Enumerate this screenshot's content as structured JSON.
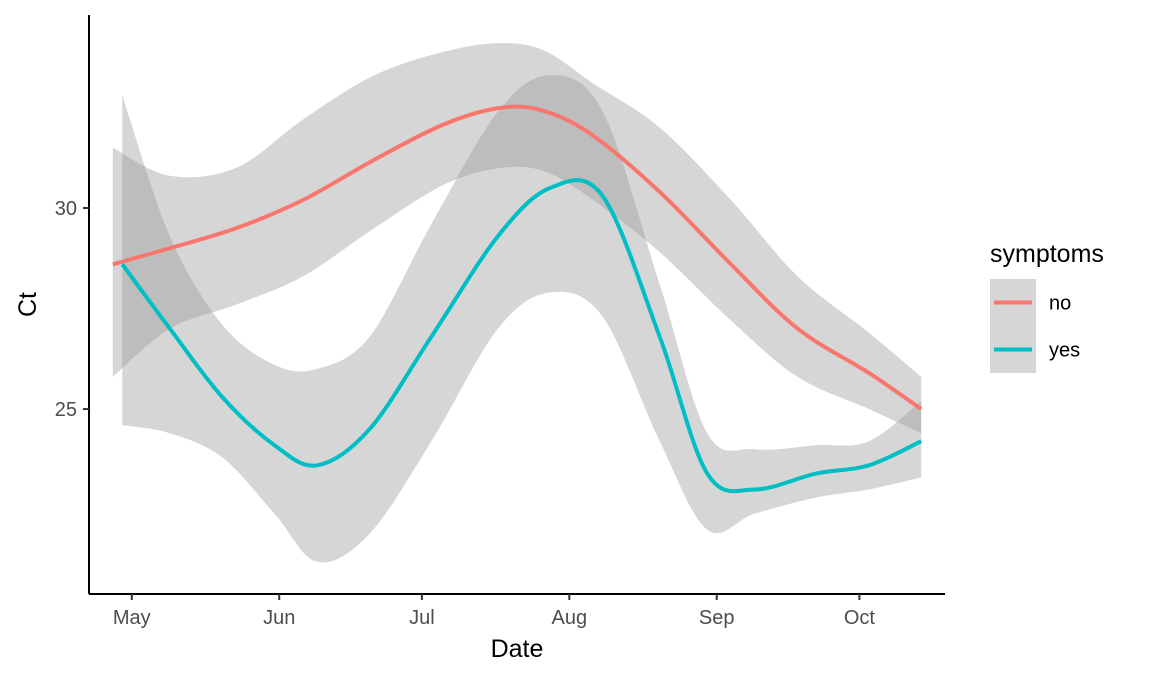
{
  "chart_data": {
    "type": "line",
    "xlabel": "Date",
    "ylabel": "Ct",
    "x_tick_labels": [
      "May",
      "Jun",
      "Jul",
      "Aug",
      "Sep",
      "Oct"
    ],
    "x_tick_dates": [
      "2021-05-01",
      "2021-06-01",
      "2021-07-01",
      "2021-08-01",
      "2021-09-01",
      "2021-10-01"
    ],
    "xlim": [
      "2021-04-22",
      "2021-10-19"
    ],
    "y_tick_labels": [
      "25",
      "30"
    ],
    "y_ticks": [
      25,
      30
    ],
    "ylim": [
      20.4,
      34.8
    ],
    "grid": false,
    "legend": {
      "title": "symptoms",
      "position": "right"
    },
    "series": [
      {
        "name": "no",
        "color": "#F8766D",
        "x": [
          "2021-04-27",
          "2021-05-09",
          "2021-05-23",
          "2021-06-06",
          "2021-06-21",
          "2021-07-06",
          "2021-07-18",
          "2021-07-27",
          "2021-08-06",
          "2021-08-20",
          "2021-09-04",
          "2021-09-18",
          "2021-10-03",
          "2021-10-14"
        ],
        "y": [
          28.6,
          29.0,
          29.5,
          30.2,
          31.2,
          32.1,
          32.5,
          32.4,
          31.8,
          30.4,
          28.6,
          27.0,
          25.9,
          25.0
        ],
        "ci_lower": [
          25.8,
          27.0,
          27.6,
          28.3,
          29.5,
          30.6,
          31.0,
          30.9,
          30.2,
          28.9,
          27.2,
          25.8,
          25.0,
          24.4
        ],
        "ci_upper": [
          31.5,
          30.8,
          31.0,
          32.2,
          33.3,
          33.9,
          34.1,
          33.9,
          33.1,
          32.0,
          30.2,
          28.3,
          26.9,
          25.8
        ]
      },
      {
        "name": "yes",
        "color": "#00BFC4",
        "x": [
          "2021-04-29",
          "2021-05-09",
          "2021-05-20",
          "2021-05-31",
          "2021-06-09",
          "2021-06-20",
          "2021-07-03",
          "2021-07-17",
          "2021-07-28",
          "2021-08-08",
          "2021-08-20",
          "2021-08-30",
          "2021-09-09",
          "2021-09-22",
          "2021-10-03",
          "2021-10-14"
        ],
        "y": [
          28.6,
          27.0,
          25.3,
          24.1,
          23.6,
          24.5,
          26.8,
          29.3,
          30.5,
          30.3,
          26.8,
          23.4,
          23.0,
          23.4,
          23.6,
          24.2
        ],
        "ci_lower": [
          24.6,
          24.4,
          23.8,
          22.4,
          21.2,
          21.9,
          24.2,
          27.0,
          27.9,
          27.3,
          24.2,
          22.0,
          22.4,
          22.8,
          23.0,
          23.3
        ],
        "ci_upper": [
          32.8,
          29.3,
          27.1,
          26.1,
          26.0,
          26.8,
          29.6,
          32.4,
          33.3,
          32.4,
          28.1,
          24.4,
          24.0,
          24.1,
          24.2,
          25.2
        ]
      }
    ]
  }
}
